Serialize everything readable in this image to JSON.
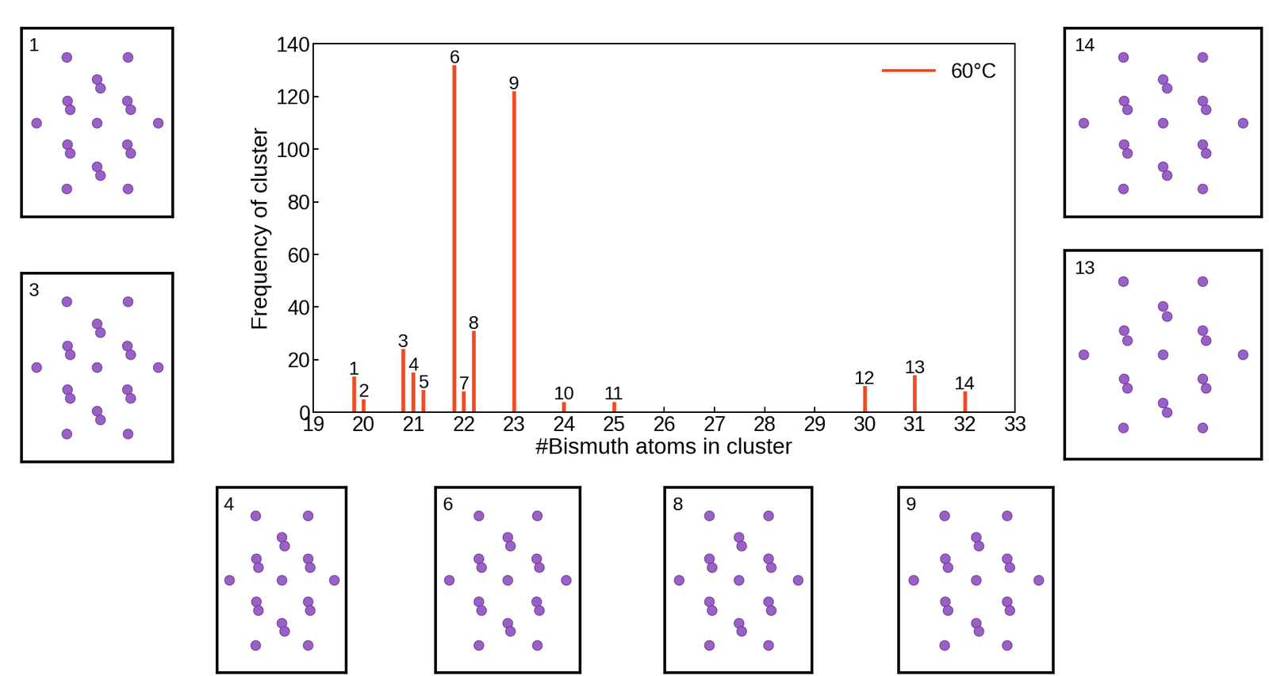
{
  "chart_data": {
    "type": "bar",
    "x_label": "#Bismuth atoms in cluster",
    "y_label": "Frequency of cluster",
    "x": [
      19.81,
      20.0,
      20.79,
      21.0,
      21.2,
      21.81,
      22.0,
      22.2,
      23.0,
      24.0,
      25.0,
      30.0,
      31.0,
      32.0
    ],
    "peak_labels": [
      "1",
      "2",
      "3",
      "4",
      "5",
      "6",
      "7",
      "8",
      "9",
      "10",
      "11",
      "12",
      "13",
      "14"
    ],
    "series": [
      {
        "name": "60°C",
        "color": "#f04a23",
        "values": [
          13.5,
          5,
          24,
          15,
          8.5,
          132,
          8,
          31,
          122,
          4,
          4,
          10,
          14,
          8
        ]
      }
    ],
    "xlim": [
      19,
      33
    ],
    "xticks": [
      19,
      20,
      21,
      22,
      23,
      24,
      25,
      26,
      27,
      28,
      29,
      30,
      31,
      32,
      33
    ],
    "ylim": [
      0,
      140
    ],
    "yticks": [
      0,
      20,
      40,
      60,
      80,
      100,
      120,
      140
    ],
    "legend": "upper right",
    "insets": [
      {
        "label": "1"
      },
      {
        "label": "3"
      },
      {
        "label": "4"
      },
      {
        "label": "6"
      },
      {
        "label": "8"
      },
      {
        "label": "9"
      },
      {
        "label": "13"
      },
      {
        "label": "14"
      }
    ]
  }
}
